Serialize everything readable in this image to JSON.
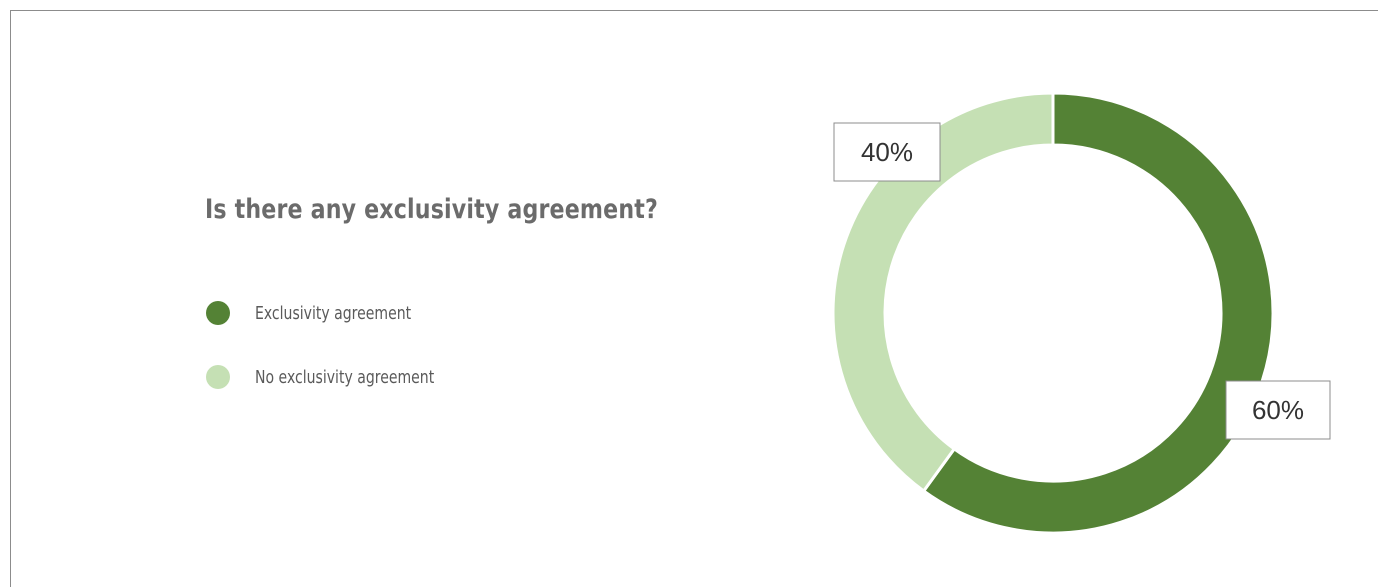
{
  "chart_data": {
    "type": "pie",
    "title": "Is there any exclusivity agreement?",
    "categories": [
      "Exclusivity agreement",
      "No exclusivity agreement"
    ],
    "values": [
      60,
      40
    ],
    "data_labels": [
      "60%",
      "40%"
    ],
    "colors": [
      "#548235",
      "#c5e0b4"
    ],
    "legend_position": "left",
    "donut": true
  }
}
